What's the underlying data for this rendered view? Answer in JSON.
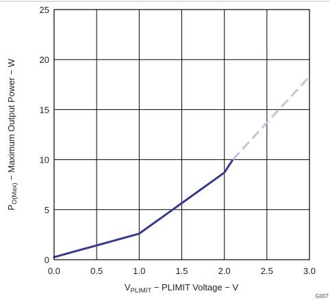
{
  "chart_data": {
    "type": "line",
    "x_axis": {
      "label_main": "V",
      "label_sub": "PLIMIT",
      "label_rest": " − PLIMIT Voltage − V",
      "range": [
        0.0,
        3.0
      ],
      "ticks": [
        0.0,
        0.5,
        1.0,
        1.5,
        2.0,
        2.5,
        3.0
      ],
      "tick_labels": [
        "0.0",
        "0.5",
        "1.0",
        "1.5",
        "2.0",
        "2.5",
        "3.0"
      ]
    },
    "y_axis": {
      "label_main": "P",
      "label_sub": "O(Max)",
      "label_rest": " − Maximum Output Power − W",
      "range": [
        0,
        25
      ],
      "ticks": [
        0,
        5,
        10,
        15,
        20,
        25
      ],
      "tick_labels": [
        "0",
        "5",
        "10",
        "15",
        "20",
        "25"
      ]
    },
    "grid": true,
    "series": [
      {
        "style": "solid",
        "color": "#363a8f",
        "x": [
          0.0,
          1.0,
          2.0,
          2.1
        ],
        "y": [
          0.25,
          2.6,
          8.7,
          10.0
        ]
      },
      {
        "style": "dashed",
        "color": "#c3c3df",
        "x": [
          2.1,
          2.5,
          3.0
        ],
        "y": [
          10.0,
          13.7,
          18.3
        ]
      }
    ],
    "corner_code": "G007"
  }
}
